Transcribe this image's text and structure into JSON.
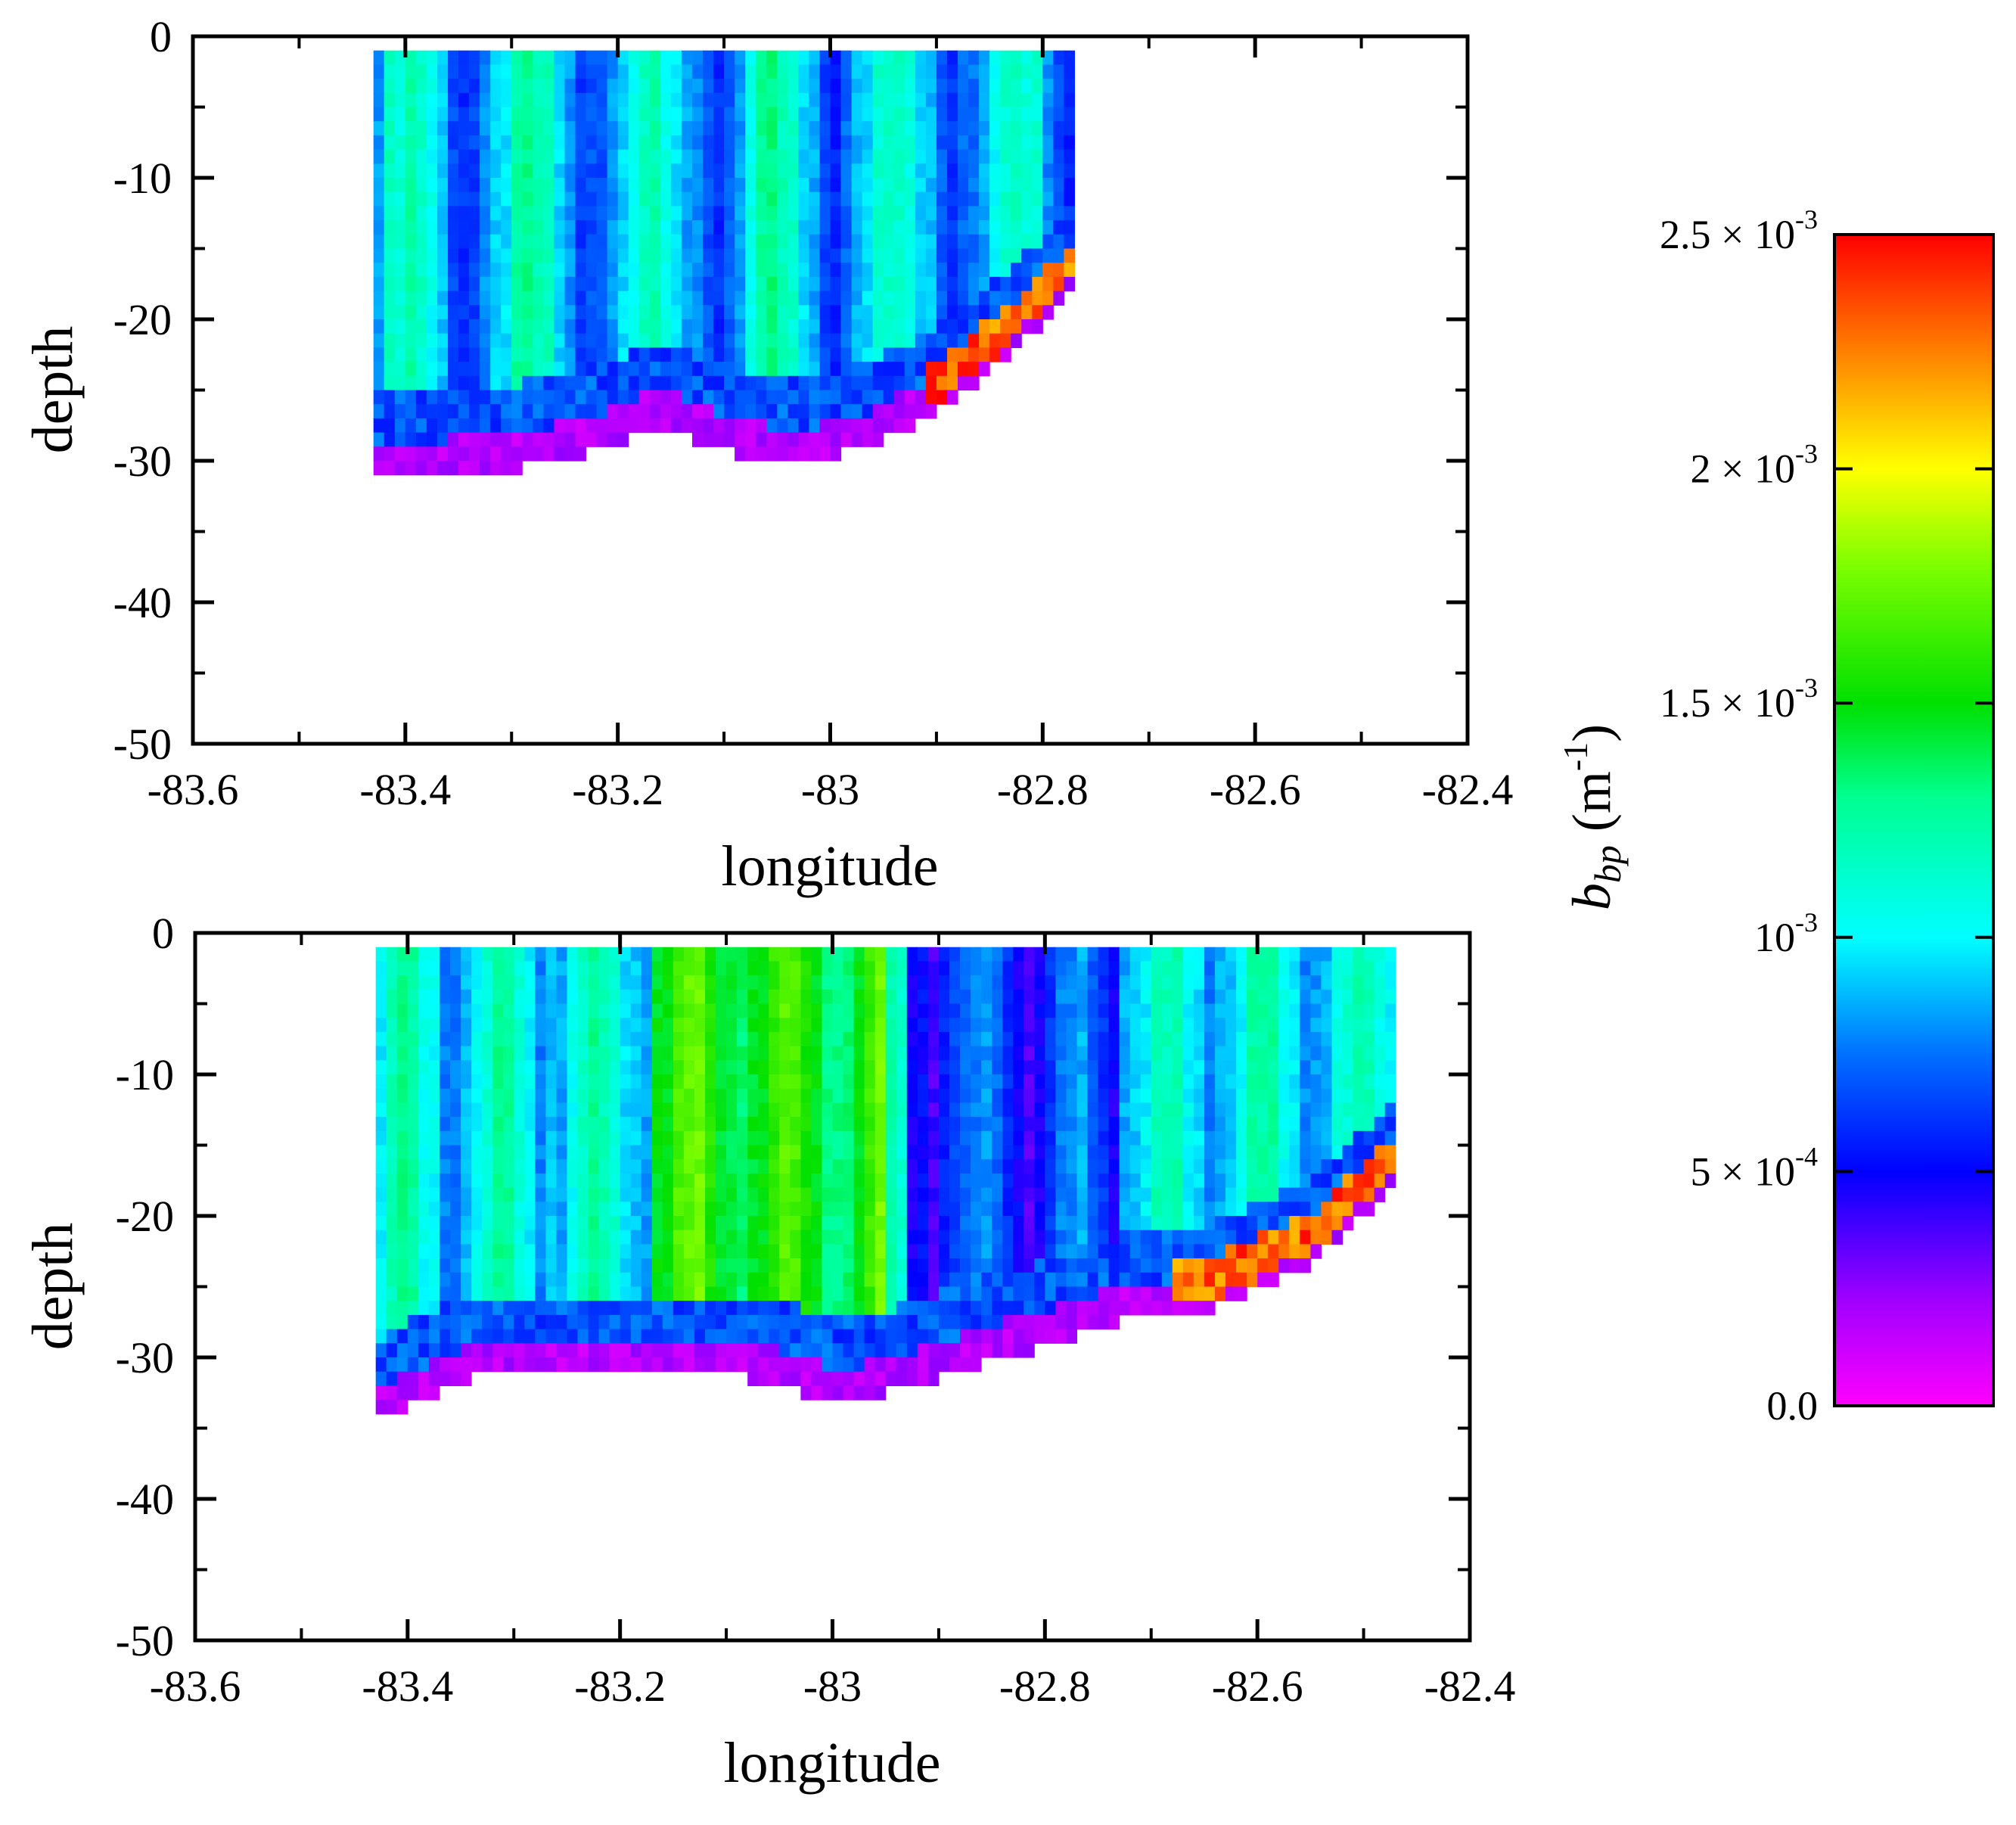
{
  "chart_data": [
    {
      "type": "heatmap",
      "id": "top",
      "xlabel": "longitude",
      "ylabel": "depth",
      "xlim": [
        -83.6,
        -82.4
      ],
      "ylim": [
        -50,
        0
      ],
      "xticks": [
        "-83.6",
        "-83.4",
        "-83.2",
        "-83",
        "-82.8",
        "-82.6",
        "-82.4"
      ],
      "yticks": [
        "0",
        "-10",
        "-20",
        "-30",
        "-40",
        "-50"
      ],
      "data_extent": {
        "lon_min": -83.43,
        "lon_max": -82.77,
        "depth_top": -1,
        "bottom_profile_depth": [
          -30.5,
          -30.5,
          -30,
          -29,
          -27,
          -29,
          -30,
          -28.5,
          -26,
          -22,
          -17
        ]
      },
      "value_range": [
        0,
        0.0025
      ],
      "description": "bbp section; bbp ~0.0006-0.0014 in water column, high values (~0.0025) near bottom at -82.9 to -82.8, low values near bottom"
    },
    {
      "type": "heatmap",
      "id": "bottom",
      "xlabel": "longitude",
      "ylabel": "depth",
      "xlim": [
        -83.6,
        -82.4
      ],
      "ylim": [
        -50,
        0
      ],
      "xticks": [
        "-83.6",
        "-83.4",
        "-83.2",
        "-83",
        "-82.8",
        "-82.6",
        "-82.4"
      ],
      "yticks": [
        "0",
        "-10",
        "-20",
        "-30",
        "-40",
        "-50"
      ],
      "data_extent": {
        "lon_min": -83.43,
        "lon_max": -82.47,
        "depth_top": -1,
        "bottom_profile_depth": [
          -34,
          -31,
          -31,
          -31,
          -31,
          -33,
          -31,
          -29,
          -27,
          -26,
          -23,
          -17
        ]
      },
      "value_range": [
        0,
        0.0025
      ],
      "description": "bbp section; green column -83.2 to -82.95, blue band -82.93 to -82.75, high values near bottom -82.65 to -82.48"
    },
    {
      "type": "colorbar",
      "label_main": "b",
      "label_sub": "bp",
      "label_unit": " (m",
      "label_exp": "-1",
      "label_close": ")",
      "ticks": [
        {
          "value": 0.0,
          "mant": "0.0",
          "times": "",
          "base": "",
          "exp": ""
        },
        {
          "value": 0.0005,
          "mant": "5",
          "times": " × ",
          "base": "10",
          "exp": "-4"
        },
        {
          "value": 0.001,
          "mant": "",
          "times": "",
          "base": "10",
          "exp": "-3"
        },
        {
          "value": 0.0015,
          "mant": "1.5",
          "times": " × ",
          "base": "10",
          "exp": "-3"
        },
        {
          "value": 0.002,
          "mant": "2",
          "times": " × ",
          "base": "10",
          "exp": "-3"
        },
        {
          "value": 0.0025,
          "mant": "2.5",
          "times": " × ",
          "base": "10",
          "exp": "-3"
        }
      ],
      "colors": [
        "#ff00ff",
        "#8000ff",
        "#0000ff",
        "#00a0ff",
        "#00ffff",
        "#00ff80",
        "#00e000",
        "#80ff00",
        "#ffff00",
        "#ff8000",
        "#ff0000"
      ]
    }
  ]
}
